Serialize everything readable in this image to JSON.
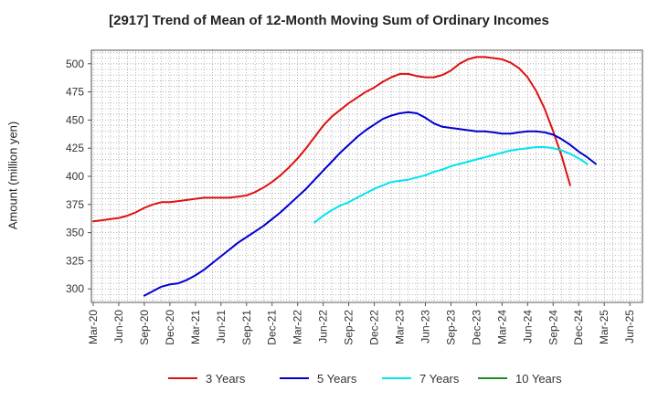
{
  "chart_data": {
    "type": "line",
    "title": "[2917]  Trend of Mean of 12-Month Moving Sum of Ordinary Incomes",
    "xlabel": "",
    "ylabel": "Amount (million yen)",
    "ylim": [
      288,
      512
    ],
    "yticks": [
      300,
      325,
      350,
      375,
      400,
      425,
      450,
      475,
      500
    ],
    "grid": true,
    "legend_position": "bottom",
    "x_tick_labels": [
      "Mar-20",
      "Jun-20",
      "Sep-20",
      "Dec-20",
      "Mar-21",
      "Jun-21",
      "Sep-21",
      "Dec-21",
      "Mar-22",
      "Jun-22",
      "Sep-22",
      "Dec-22",
      "Mar-23",
      "Jun-23",
      "Sep-23",
      "Dec-23",
      "Mar-24",
      "Jun-24",
      "Sep-24",
      "Dec-24",
      "Mar-25",
      "Jun-25"
    ],
    "series": [
      {
        "name": "3 Years",
        "color": "#dd1111",
        "start_index": 0,
        "values": [
          360,
          361,
          362,
          363,
          365,
          368,
          372,
          375,
          377,
          377,
          378,
          379,
          380,
          381,
          381,
          381,
          381,
          382,
          383,
          386,
          390,
          395,
          401,
          408,
          416,
          425,
          435,
          445,
          453,
          459,
          465,
          470,
          475,
          479,
          484,
          488,
          491,
          491,
          489,
          488,
          488,
          490,
          494,
          500,
          504,
          506,
          506,
          505,
          504,
          501,
          496,
          488,
          476,
          460,
          440,
          418,
          392
        ]
      },
      {
        "name": "5 Years",
        "color": "#0000cc",
        "start_index": 6,
        "values": [
          294,
          298,
          302,
          304,
          305,
          308,
          312,
          317,
          323,
          329,
          335,
          341,
          346,
          351,
          356,
          362,
          368,
          375,
          382,
          389,
          397,
          405,
          413,
          421,
          428,
          435,
          441,
          446,
          451,
          454,
          456,
          457,
          456,
          452,
          447,
          444,
          443,
          442,
          441,
          440,
          440,
          439,
          438,
          438,
          439,
          440,
          440,
          439,
          437,
          433,
          428,
          422,
          417,
          411
        ]
      },
      {
        "name": "7 Years",
        "color": "#00e5ee",
        "start_index": 26,
        "values": [
          359,
          365,
          370,
          374,
          377,
          381,
          385,
          389,
          392,
          395,
          396,
          397,
          399,
          401,
          404,
          406,
          409,
          411,
          413,
          415,
          417,
          419,
          421,
          423,
          424,
          425,
          426,
          426,
          425,
          423,
          420,
          416,
          411
        ]
      },
      {
        "name": "10 Years",
        "color": "#228b22",
        "start_index": 0,
        "values": []
      }
    ]
  }
}
